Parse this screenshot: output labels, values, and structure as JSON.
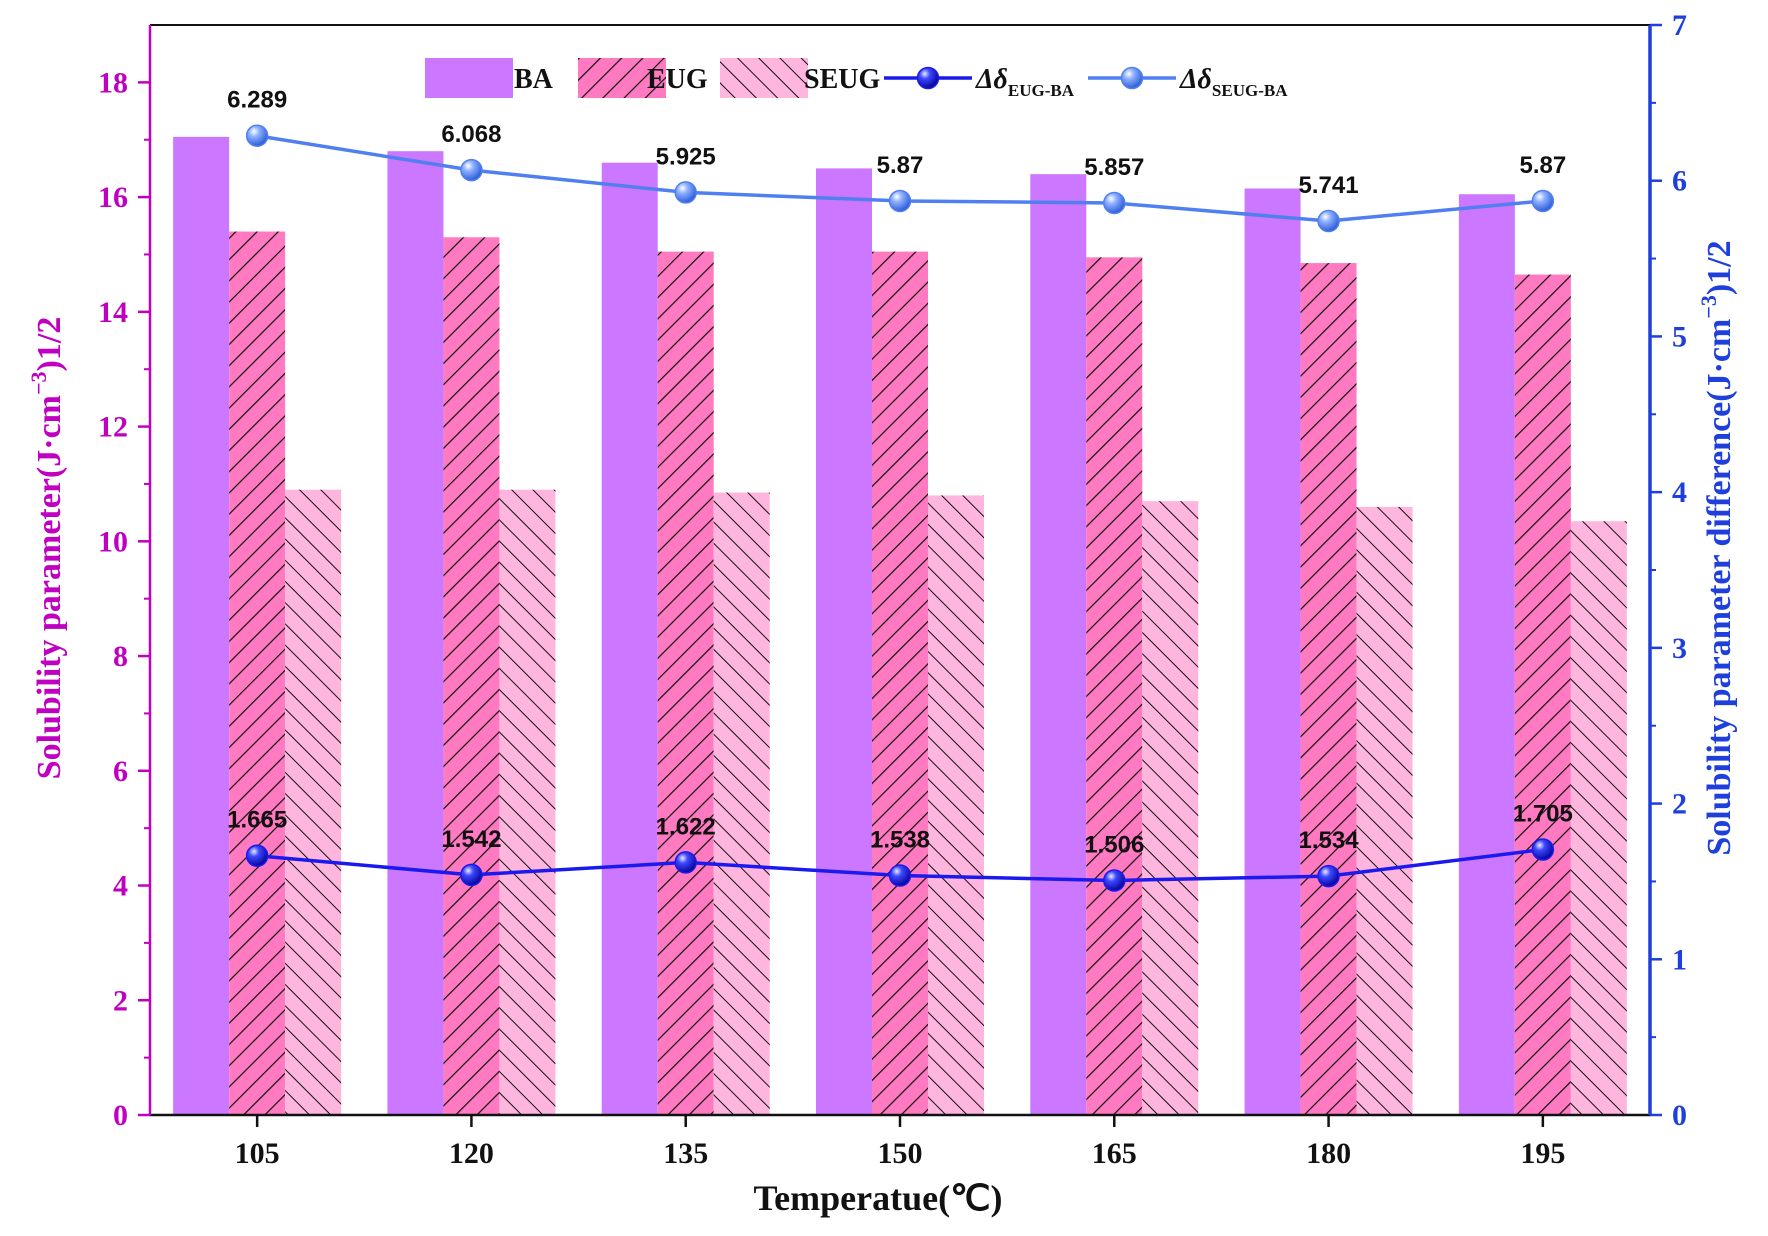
{
  "chart_data": {
    "type": "bar",
    "categories": [
      "105",
      "120",
      "135",
      "150",
      "165",
      "180",
      "195"
    ],
    "xlabel": "Temperatue(℃)",
    "ylabel": "Solubility parameter(J·cm",
    "ylabel_sup": "−3",
    "ylabel_tail": ")1/2",
    "y2label": "Solubility parameter difference(J·cm",
    "y2label_sup": "−3",
    "y2label_tail": ")1/2",
    "ylim": [
      0,
      19
    ],
    "y2lim": [
      0,
      7
    ],
    "yticks": [
      0,
      2,
      4,
      6,
      8,
      10,
      12,
      14,
      16,
      18
    ],
    "y2ticks": [
      0,
      1,
      2,
      3,
      4,
      5,
      6,
      7
    ],
    "bar_series": [
      {
        "name": "BA",
        "color": "#cc77ff",
        "pattern": "solid",
        "values": [
          17.05,
          16.8,
          16.6,
          16.5,
          16.4,
          16.15,
          16.05
        ]
      },
      {
        "name": "EUG",
        "color": "#ff7ac0",
        "pattern": "hatch-forward",
        "values": [
          15.4,
          15.3,
          15.05,
          15.05,
          14.95,
          14.85,
          14.65
        ]
      },
      {
        "name": "SEUG",
        "color": "#ffb6de",
        "pattern": "hatch-backward",
        "values": [
          10.9,
          10.9,
          10.85,
          10.8,
          10.7,
          10.6,
          10.35
        ]
      }
    ],
    "line_series": [
      {
        "name": "Δδ",
        "name_sub": "EUG-BA",
        "axis": "right",
        "color": "#1a1aee",
        "values": [
          1.665,
          1.542,
          1.622,
          1.538,
          1.506,
          1.534,
          1.705
        ],
        "labels": [
          "1.665",
          "1.542",
          "1.622",
          "1.538",
          "1.506",
          "1.534",
          "1.705"
        ]
      },
      {
        "name": "Δδ",
        "name_sub": "SEUG-BA",
        "axis": "right",
        "color": "#4f7ff0",
        "values": [
          6.289,
          6.068,
          5.925,
          5.87,
          5.857,
          5.741,
          5.87
        ],
        "labels": [
          "6.289",
          "6.068",
          "5.925",
          "5.87",
          "5.857",
          "5.741",
          "5.87"
        ]
      }
    ],
    "grid": false,
    "legend_position": "top"
  }
}
